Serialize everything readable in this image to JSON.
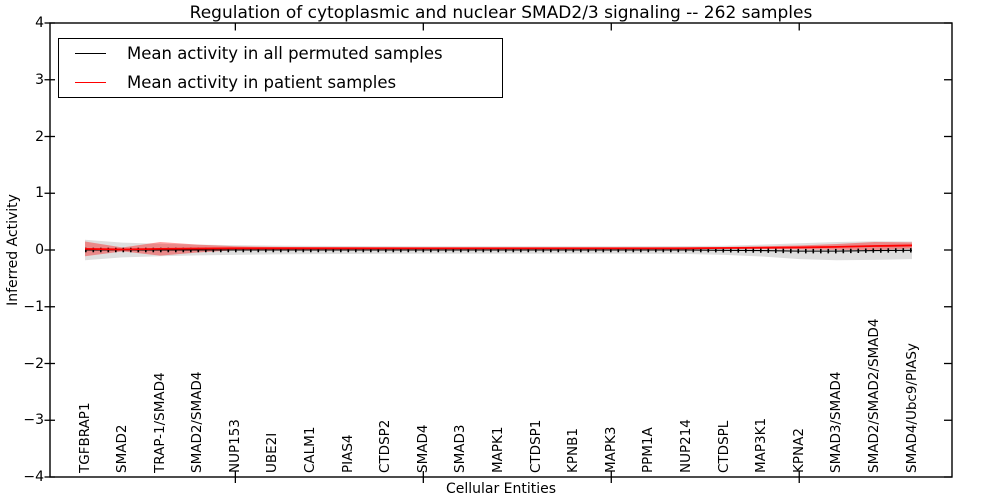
{
  "figure": {
    "title": "Regulation of cytoplasmic and nuclear SMAD2/3 signaling -- 262 samples",
    "xlabel": "Cellular Entities",
    "ylabel": "Inferred Activity"
  },
  "legend": {
    "entries": [
      {
        "label": "Mean activity in all permuted samples",
        "color": "#000000"
      },
      {
        "label": "Mean activity in patient samples",
        "color": "#ff0000"
      }
    ],
    "position": "upper left"
  },
  "chart_data": {
    "type": "line",
    "title": "Regulation of cytoplasmic and nuclear SMAD2/3 signaling -- 262 samples",
    "xlabel": "Cellular Entities",
    "ylabel": "Inferred Activity",
    "ylim": [
      -4,
      4
    ],
    "ytick_values": [
      4,
      3,
      2,
      1,
      0,
      -1,
      -2,
      -3,
      -4
    ],
    "ytick_labels": [
      "4",
      "3",
      "2",
      "1",
      "0",
      "−1",
      "−2",
      "−3",
      "−4"
    ],
    "x_major_tick_indices": [
      4,
      9,
      14,
      19
    ],
    "grid": false,
    "categories": [
      "TGFBRAP1",
      "SMAD2",
      "TRAP-1/SMAD4",
      "SMAD2/SMAD4",
      "NUP153",
      "UBE2I",
      "CALM1",
      "PIAS4",
      "CTDSP2",
      "SMAD4",
      "SMAD3",
      "MAPK1",
      "CTDSP1",
      "KPNB1",
      "MAPK3",
      "PPM1A",
      "NUP214",
      "CTDSPL",
      "MAP3K1",
      "KPNA2",
      "SMAD3/SMAD4",
      "SMAD2/SMAD2/SMAD4",
      "SMAD4/Ubc9/PIASy"
    ],
    "series": [
      {
        "name": "Mean activity in all permuted samples",
        "color": "#000000",
        "style": "dotted",
        "values": [
          0,
          0,
          0,
          0,
          0,
          0,
          0,
          0,
          0,
          0,
          0,
          0,
          0,
          0,
          0,
          0,
          0,
          -0.005,
          -0.01,
          -0.02,
          -0.02,
          -0.01,
          -0.005
        ],
        "band_halfwidth": [
          0.18,
          0.13,
          0.11,
          0.095,
          0.085,
          0.078,
          0.072,
          0.07,
          0.068,
          0.066,
          0.065,
          0.065,
          0.065,
          0.065,
          0.066,
          0.068,
          0.07,
          0.08,
          0.105,
          0.14,
          0.16,
          0.165,
          0.155
        ],
        "band_color": "rgba(0,0,0,0.13)"
      },
      {
        "name": "Mean activity in patient samples",
        "color": "#ff0000",
        "style": "solid",
        "values": [
          0.02,
          0.01,
          0.02,
          0.025,
          0.03,
          0.03,
          0.03,
          0.03,
          0.03,
          0.03,
          0.03,
          0.03,
          0.03,
          0.03,
          0.03,
          0.03,
          0.03,
          0.035,
          0.04,
          0.045,
          0.055,
          0.07,
          0.08
        ],
        "band_halfwidth": [
          0.13,
          0.035,
          0.12,
          0.07,
          0.035,
          0.025,
          0.02,
          0.018,
          0.016,
          0.015,
          0.015,
          0.015,
          0.015,
          0.015,
          0.015,
          0.015,
          0.016,
          0.018,
          0.025,
          0.035,
          0.05,
          0.07,
          0.055
        ],
        "band_color": "rgba(255,0,0,0.38)"
      }
    ],
    "legend_position": "upper left"
  }
}
